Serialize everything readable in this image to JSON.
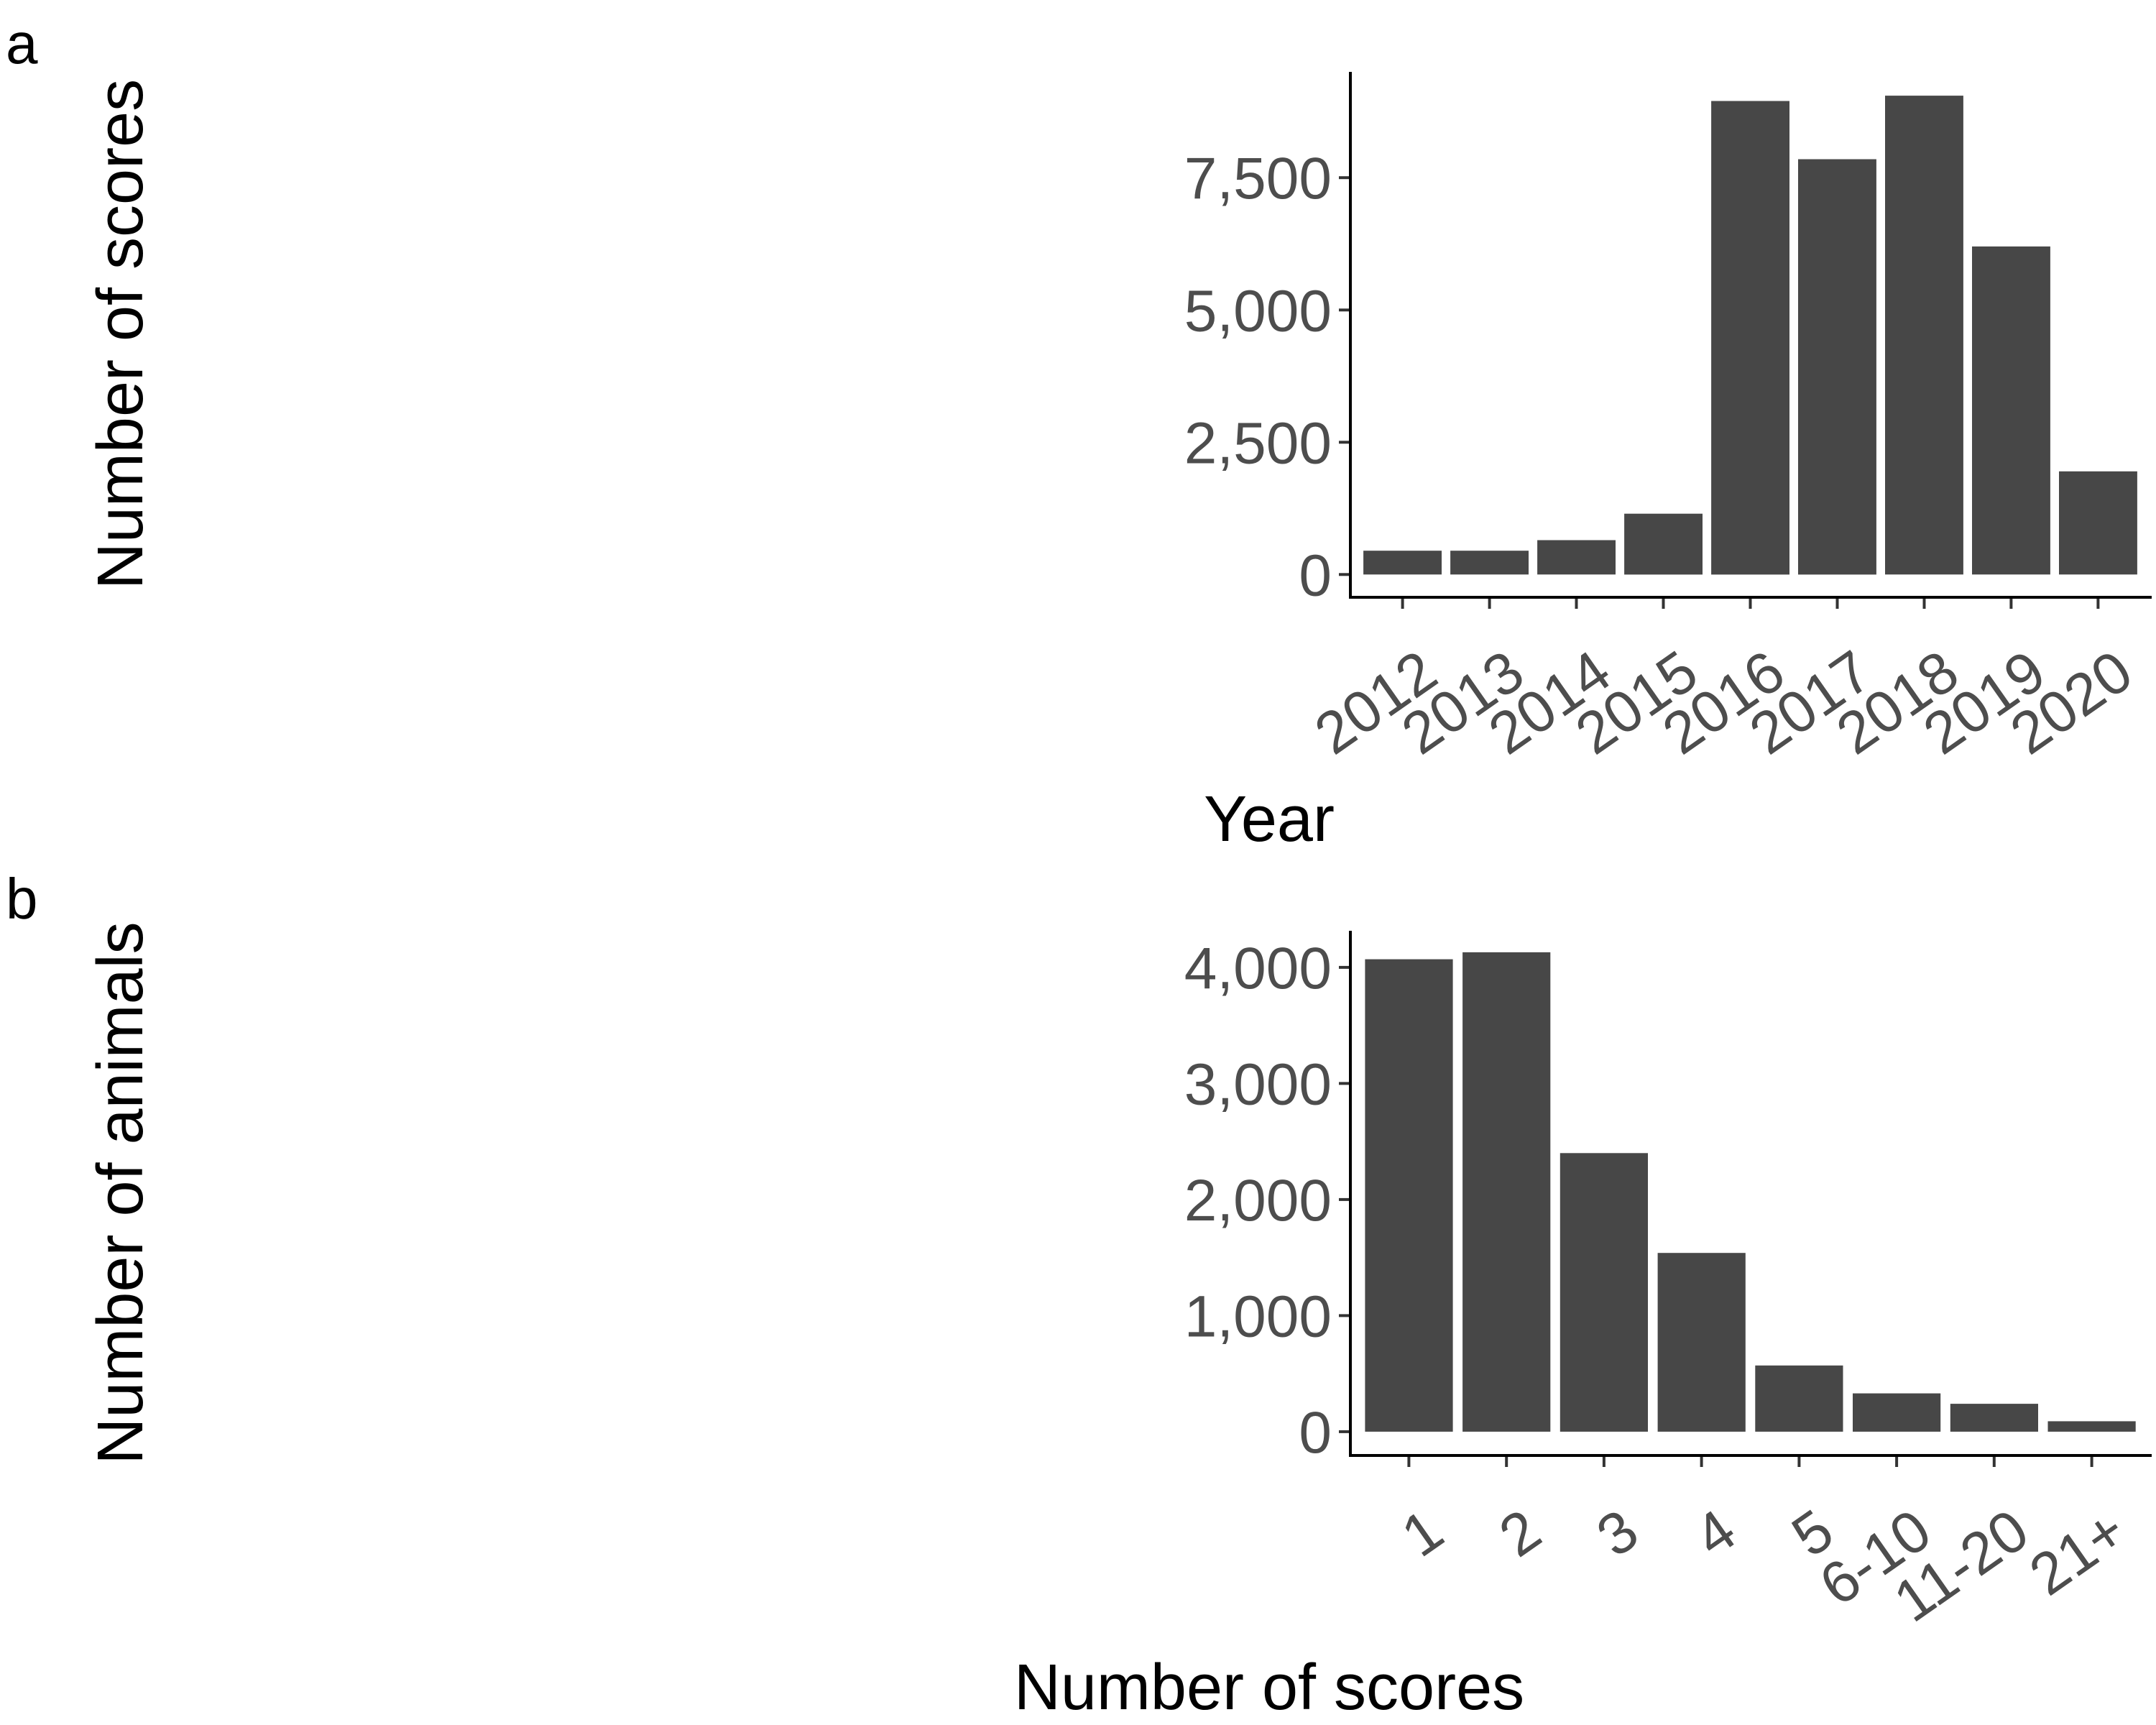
{
  "panels": {
    "a": {
      "letter": "a"
    },
    "b": {
      "letter": "b"
    }
  },
  "colors": {
    "bar": "#474747",
    "axis": "#000000",
    "tick_text": "#4d4d4d",
    "background": "#ffffff"
  },
  "chart_data": [
    {
      "type": "bar",
      "panel": "a",
      "categories": [
        "2012",
        "2013",
        "2014",
        "2015",
        "2016",
        "2017",
        "2018",
        "2019",
        "2020"
      ],
      "series": [
        {
          "values": [
            450,
            450,
            650,
            1150,
            8950,
            7850,
            9050,
            6200,
            1950
          ]
        }
      ],
      "xlabel": "Year",
      "ylabel": "Number of scores",
      "yticks": [
        0,
        2500,
        5000,
        7500
      ],
      "ytick_labels": [
        "0",
        "2,500",
        "5,000",
        "7,500"
      ],
      "ylim": [
        -430,
        9500
      ],
      "grid": false,
      "legend": "none",
      "x_tick_rotation": 35
    },
    {
      "type": "bar",
      "panel": "b",
      "categories": [
        "1",
        "2",
        "3",
        "4",
        "5",
        "6-10",
        "11-20",
        "21+"
      ],
      "series": [
        {
          "values": [
            4070,
            4130,
            2400,
            1540,
            570,
            330,
            240,
            90
          ]
        }
      ],
      "xlabel": "Number of scores",
      "ylabel": "Number of animals",
      "yticks": [
        0,
        1000,
        2000,
        3000,
        4000
      ],
      "ytick_labels": [
        "0",
        "1,000",
        "2,000",
        "3,000",
        "4,000"
      ],
      "ylim": [
        -205,
        4315
      ],
      "grid": false,
      "legend": "none",
      "x_tick_rotation": 35
    }
  ]
}
